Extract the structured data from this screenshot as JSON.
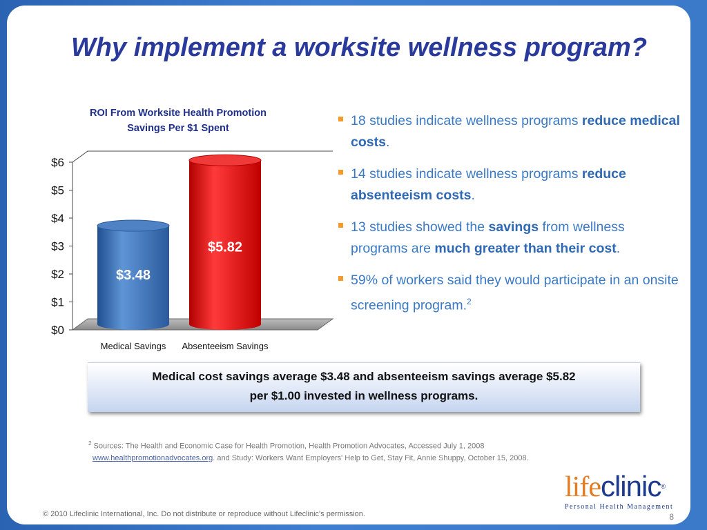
{
  "slide": {
    "title": "Why implement a worksite wellness program?",
    "bullets": [
      {
        "pre": "18 studies indicate wellness programs ",
        "bold": "reduce medical costs",
        "post": ".",
        "sup": ""
      },
      {
        "pre": "14 studies indicate wellness programs ",
        "bold": "reduce absenteeism costs",
        "post": ".",
        "sup": ""
      },
      {
        "pre": "13 studies showed the ",
        "bold": "savings",
        "mid": " from wellness programs are ",
        "bold2": "much greater than their cost",
        "post": ".",
        "sup": ""
      },
      {
        "pre": "59% of workers said they would participate in an onsite screening program.",
        "bold": "",
        "post": "",
        "sup": "2"
      }
    ],
    "summary": {
      "line1": "Medical cost savings average $3.48 and absenteeism savings average $5.82",
      "line2": "per $1.00 invested in wellness programs."
    },
    "sources": {
      "sup": "2",
      "line1": "Sources: The Health and Economic Case for Health Promotion, Health Promotion Advocates, Accessed July 1, 2008",
      "link": "www.healthpromotionadvocates.org",
      "line2": ".   and  Study: Workers Want Employers' Help to Get, Stay Fit, Annie Shuppy, October 15, 2008."
    },
    "logo": {
      "life": "life",
      "clinic": "clinic",
      "reg": "®",
      "tagline": "Personal Health Management"
    },
    "copyright": "© 2010 Lifeclinic International, Inc.  Do not distribute or reproduce without Lifeclinic's permission.",
    "page_number": "8",
    "colors": {
      "title": "#2a3a9c",
      "bullet_text": "#3a79c4",
      "bullet_marker": "#f39a2b",
      "background": "#3f7fd0"
    }
  },
  "chart_data": {
    "type": "bar",
    "title_line1": "ROI From Worksite Health Promotion",
    "title_line2": "Savings Per $1 Spent",
    "categories": [
      "Medical Savings",
      "Absenteeism Savings"
    ],
    "values": [
      3.48,
      5.82
    ],
    "value_labels": [
      "$3.48",
      "$5.82"
    ],
    "bar_colors": [
      "#3a6fb3",
      "#e01010"
    ],
    "yticks": [
      "$0",
      "$1",
      "$2",
      "$3",
      "$4",
      "$5",
      "$6"
    ],
    "ylim": [
      0,
      6
    ],
    "grid": false,
    "legend": "none"
  }
}
